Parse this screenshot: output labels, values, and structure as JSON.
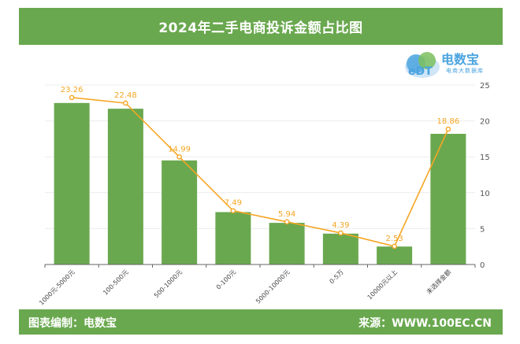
{
  "header": {
    "title": "2024年二手电商投诉金额占比图"
  },
  "logo": {
    "name": "电数宝",
    "tagline": "电商大数据库",
    "icon": "cloud-logo-icon"
  },
  "footer": {
    "left": "图表编制：电数宝",
    "right": "来源：WWW.100EC.CN"
  },
  "colors": {
    "bar": "#6aa84f",
    "line": "#f5a623",
    "header": "#6aa84f",
    "logo": "#4aa3df"
  },
  "chart_data": {
    "type": "bar",
    "categories": [
      "1000元-5000元",
      "100-500元",
      "500-1000元",
      "0-100元",
      "5000-10000元",
      "0-5万",
      "10000元以上",
      "未选择金额"
    ],
    "series": [
      {
        "type": "bar",
        "values": [
          22.5,
          21.7,
          14.5,
          7.3,
          5.8,
          4.3,
          2.5,
          18.2
        ]
      },
      {
        "type": "line",
        "values": [
          23.26,
          22.48,
          14.99,
          7.49,
          5.94,
          4.39,
          2.53,
          18.86
        ],
        "labels": [
          "23.26",
          "22.48",
          "14.99",
          "7.49",
          "5.94",
          "4.39",
          "2.53",
          "18.86"
        ]
      }
    ],
    "y_axis": {
      "position": "right",
      "range": [
        0,
        25
      ],
      "ticks": [
        "0",
        "5",
        "10",
        "15",
        "20",
        "25"
      ]
    },
    "grid": true
  }
}
